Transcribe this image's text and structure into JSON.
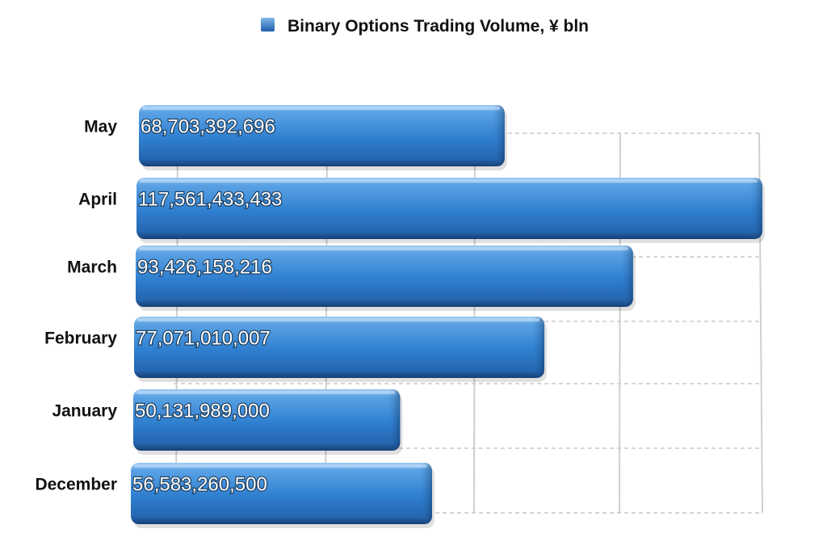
{
  "chart_data": {
    "type": "bar",
    "orientation": "horizontal",
    "categories": [
      "May",
      "April",
      "March",
      "February",
      "January",
      "December"
    ],
    "series": [
      {
        "name": "Binary Options Trading Volume, ¥ bln",
        "values": [
          68703392696,
          117561433433,
          93426158216,
          77071010007,
          50131989000,
          56583260500
        ],
        "labels": [
          "68,703,392,696",
          "117,561,433,433",
          "93,426,158,216",
          "77,071,010,007",
          "50,131,989,000",
          "56,583,260,500"
        ]
      }
    ],
    "title": "",
    "xlabel": "",
    "ylabel": "",
    "xlim": [
      0,
      125000000000
    ],
    "grid": true,
    "legend_position": "top",
    "style": "3d"
  },
  "colors": {
    "bar_top": "#7fb8ea",
    "bar_mid": "#2f7fd0",
    "bar_bottom": "#1a4f8e",
    "legend_swatch": "#2f7fd0",
    "grid": "#c8c8c8"
  }
}
